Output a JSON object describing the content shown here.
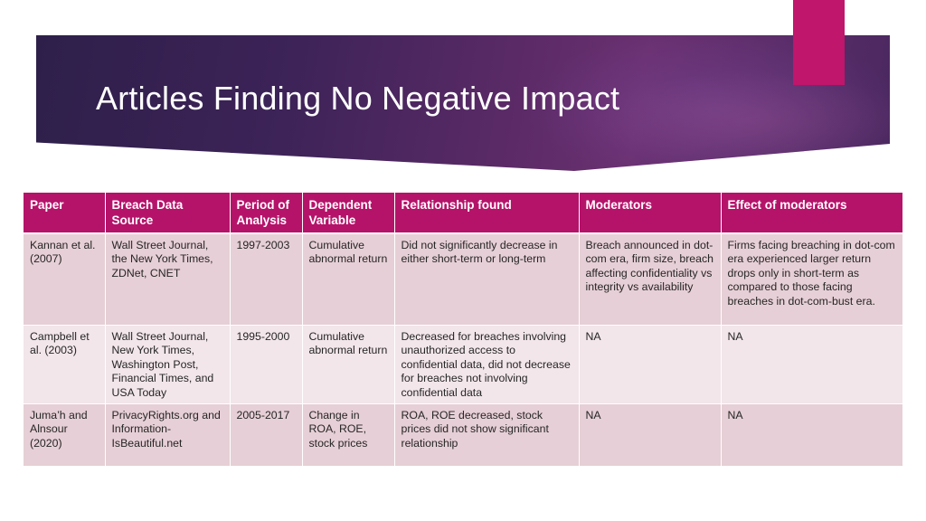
{
  "slide": {
    "title": "Articles Finding No Negative Impact",
    "colors": {
      "title_band": "#4a2860",
      "accent_tab": "#c0166b",
      "header_fill": "#b5136a",
      "row_dark": "#e6cfd6",
      "row_light": "#f2e6ea"
    }
  },
  "table": {
    "headers": {
      "paper": "Paper",
      "source": "Breach Data Source",
      "period": "Period of Analysis",
      "dependent": "Dependent Variable",
      "relationship": "Relationship found",
      "moderators": "Moderators",
      "effect": "Effect of moderators"
    },
    "rows": [
      {
        "paper": "Kannan et al. (2007)",
        "source": "Wall Street Journal, the New York Times, ZDNet, CNET",
        "period": "1997-2003",
        "dependent": "Cumulative abnormal return",
        "relationship": "Did not significantly decrease in either short-term or long-term",
        "moderators": "Breach announced in dot-com era, firm size, breach affecting confidentiality vs integrity vs availability",
        "effect": "Firms facing breaching in dot-com era experienced larger return drops only in short-term as compared to those facing breaches in dot-com-bust era."
      },
      {
        "paper": "Campbell et al. (2003)",
        "source": "Wall Street Journal, New York Times, Washington Post, Financial Times, and USA Today",
        "period": "1995-2000",
        "dependent": "Cumulative abnormal return",
        "relationship": "Decreased for breaches involving unauthorized access to confidential data, did not decrease for breaches not involving confidential data",
        "moderators": "NA",
        "effect": "NA"
      },
      {
        "paper": "Juma’h and Alnsour (2020)",
        "source": "PrivacyRights.org and Information-IsBeautiful.net",
        "period": "2005-2017",
        "dependent": "Change in ROA, ROE, stock prices",
        "relationship": "ROA, ROE decreased, stock prices did not show significant relationship",
        "moderators": "NA",
        "effect": "NA"
      }
    ]
  }
}
